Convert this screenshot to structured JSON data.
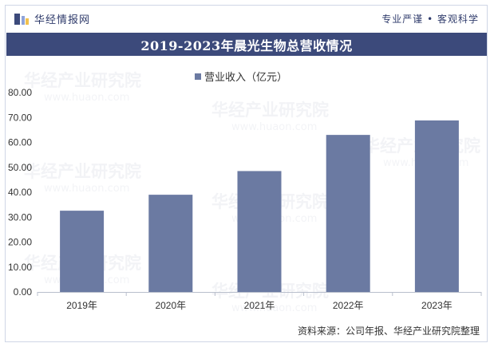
{
  "header": {
    "logo_text": "华经情报网",
    "slogan": "专业严谨 • 客观科学"
  },
  "chart_data": {
    "type": "bar",
    "title": "2019-2023年晨光生物总营收情况",
    "series": [
      {
        "name": "营业收入（亿元）",
        "values": [
          32.6,
          39.0,
          48.5,
          63.0,
          68.8
        ]
      }
    ],
    "categories": [
      "2019年",
      "2020年",
      "2021年",
      "2022年",
      "2023年"
    ],
    "ylim": [
      0,
      80
    ],
    "yticks": [
      "0.00",
      "10.00",
      "20.00",
      "30.00",
      "40.00",
      "50.00",
      "60.00",
      "70.00",
      "80.00"
    ],
    "legend_position": "top-center",
    "grid": false,
    "bar_color": "#6b7aa2"
  },
  "watermark": {
    "text": "华经产业研究院",
    "url_text": "www.huaon.com"
  },
  "footer": {
    "source": "资料来源：公司年报、华经产业研究院整理"
  }
}
